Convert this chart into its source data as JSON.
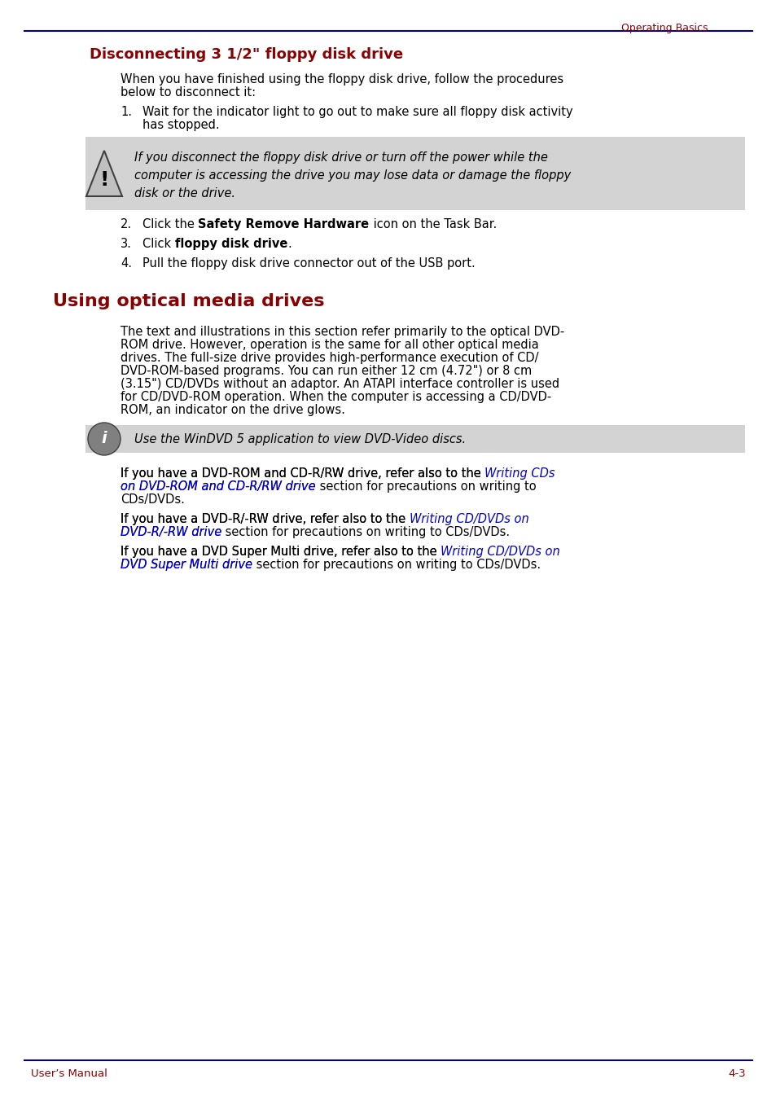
{
  "page_bg": "#ffffff",
  "header_text": "Operating Basics",
  "header_color": "#8b0000",
  "header_line_color": "#00008b",
  "section1_title": "Disconnecting 3 1/2\" floppy disk drive",
  "section1_title_color": "#8b0000",
  "section1_intro": "When you have finished using the floppy disk drive, follow the procedures\nbelow to disconnect it:",
  "section1_items": [
    "Wait for the indicator light to go out to make sure all floppy disk activity\nhas stopped.",
    "Click the **Safety Remove Hardware** icon on the Task Bar.",
    "Click **floppy disk drive**.",
    "Pull the floppy disk drive connector out of the USB port."
  ],
  "warning_text": "If you disconnect the floppy disk drive or turn off the power while the\ncomputer is accessing the drive you may lose data or damage the floppy\ndisk or the drive.",
  "warning_bg": "#d3d3d3",
  "section2_title": "Using optical media drives",
  "section2_title_color": "#8b0000",
  "section2_body": "The text and illustrations in this section refer primarily to the optical DVD-\nROM drive. However, operation is the same for all other optical media\ndrives. The full-size drive provides high-performance execution of CD/\nDVD-ROM-based programs. You can run either 12 cm (4.72\") or 8 cm\n(3.15\") CD/DVDs without an adaptor. An ATAPI interface controller is used\nfor CD/DVD-ROM operation. When the computer is accessing a CD/DVD-\nROM, an indicator on the drive glows.",
  "note_text": "Use the WinDVD 5 application to view DVD-Video discs.",
  "note_bg": "#d3d3d3",
  "para2_text1_before": "If you have a DVD-ROM and CD-R/RW drive, refer also to the ",
  "para2_link1": "Writing CDs\non DVD-ROM and CD-R/RW drive",
  "para2_text1_after": " section for precautions on writing to\nCDs/DVDs.",
  "para3_text1_before": "If you have a DVD-R/-RW drive, refer also to the ",
  "para3_link1": "Writing CD/DVDs on\nDVD-R/-RW drive",
  "para3_text1_after": " section for precautions on writing to CDs/DVDs.",
  "para4_text1_before": "If you have a DVD Super Multi drive, refer also to the ",
  "para4_link1": "Writing CD/DVDs on\nDVD Super Multi drive",
  "para4_text1_after": " section for precautions on writing to CDs/DVDs.",
  "link_color": "#0000cd",
  "footer_left": "User’s Manual",
  "footer_right": "4-3",
  "footer_color": "#8b0000",
  "footer_line_color": "#00008b",
  "text_color": "#000000",
  "body_fontsize": 10.5,
  "title1_fontsize": 13,
  "title2_fontsize": 16
}
